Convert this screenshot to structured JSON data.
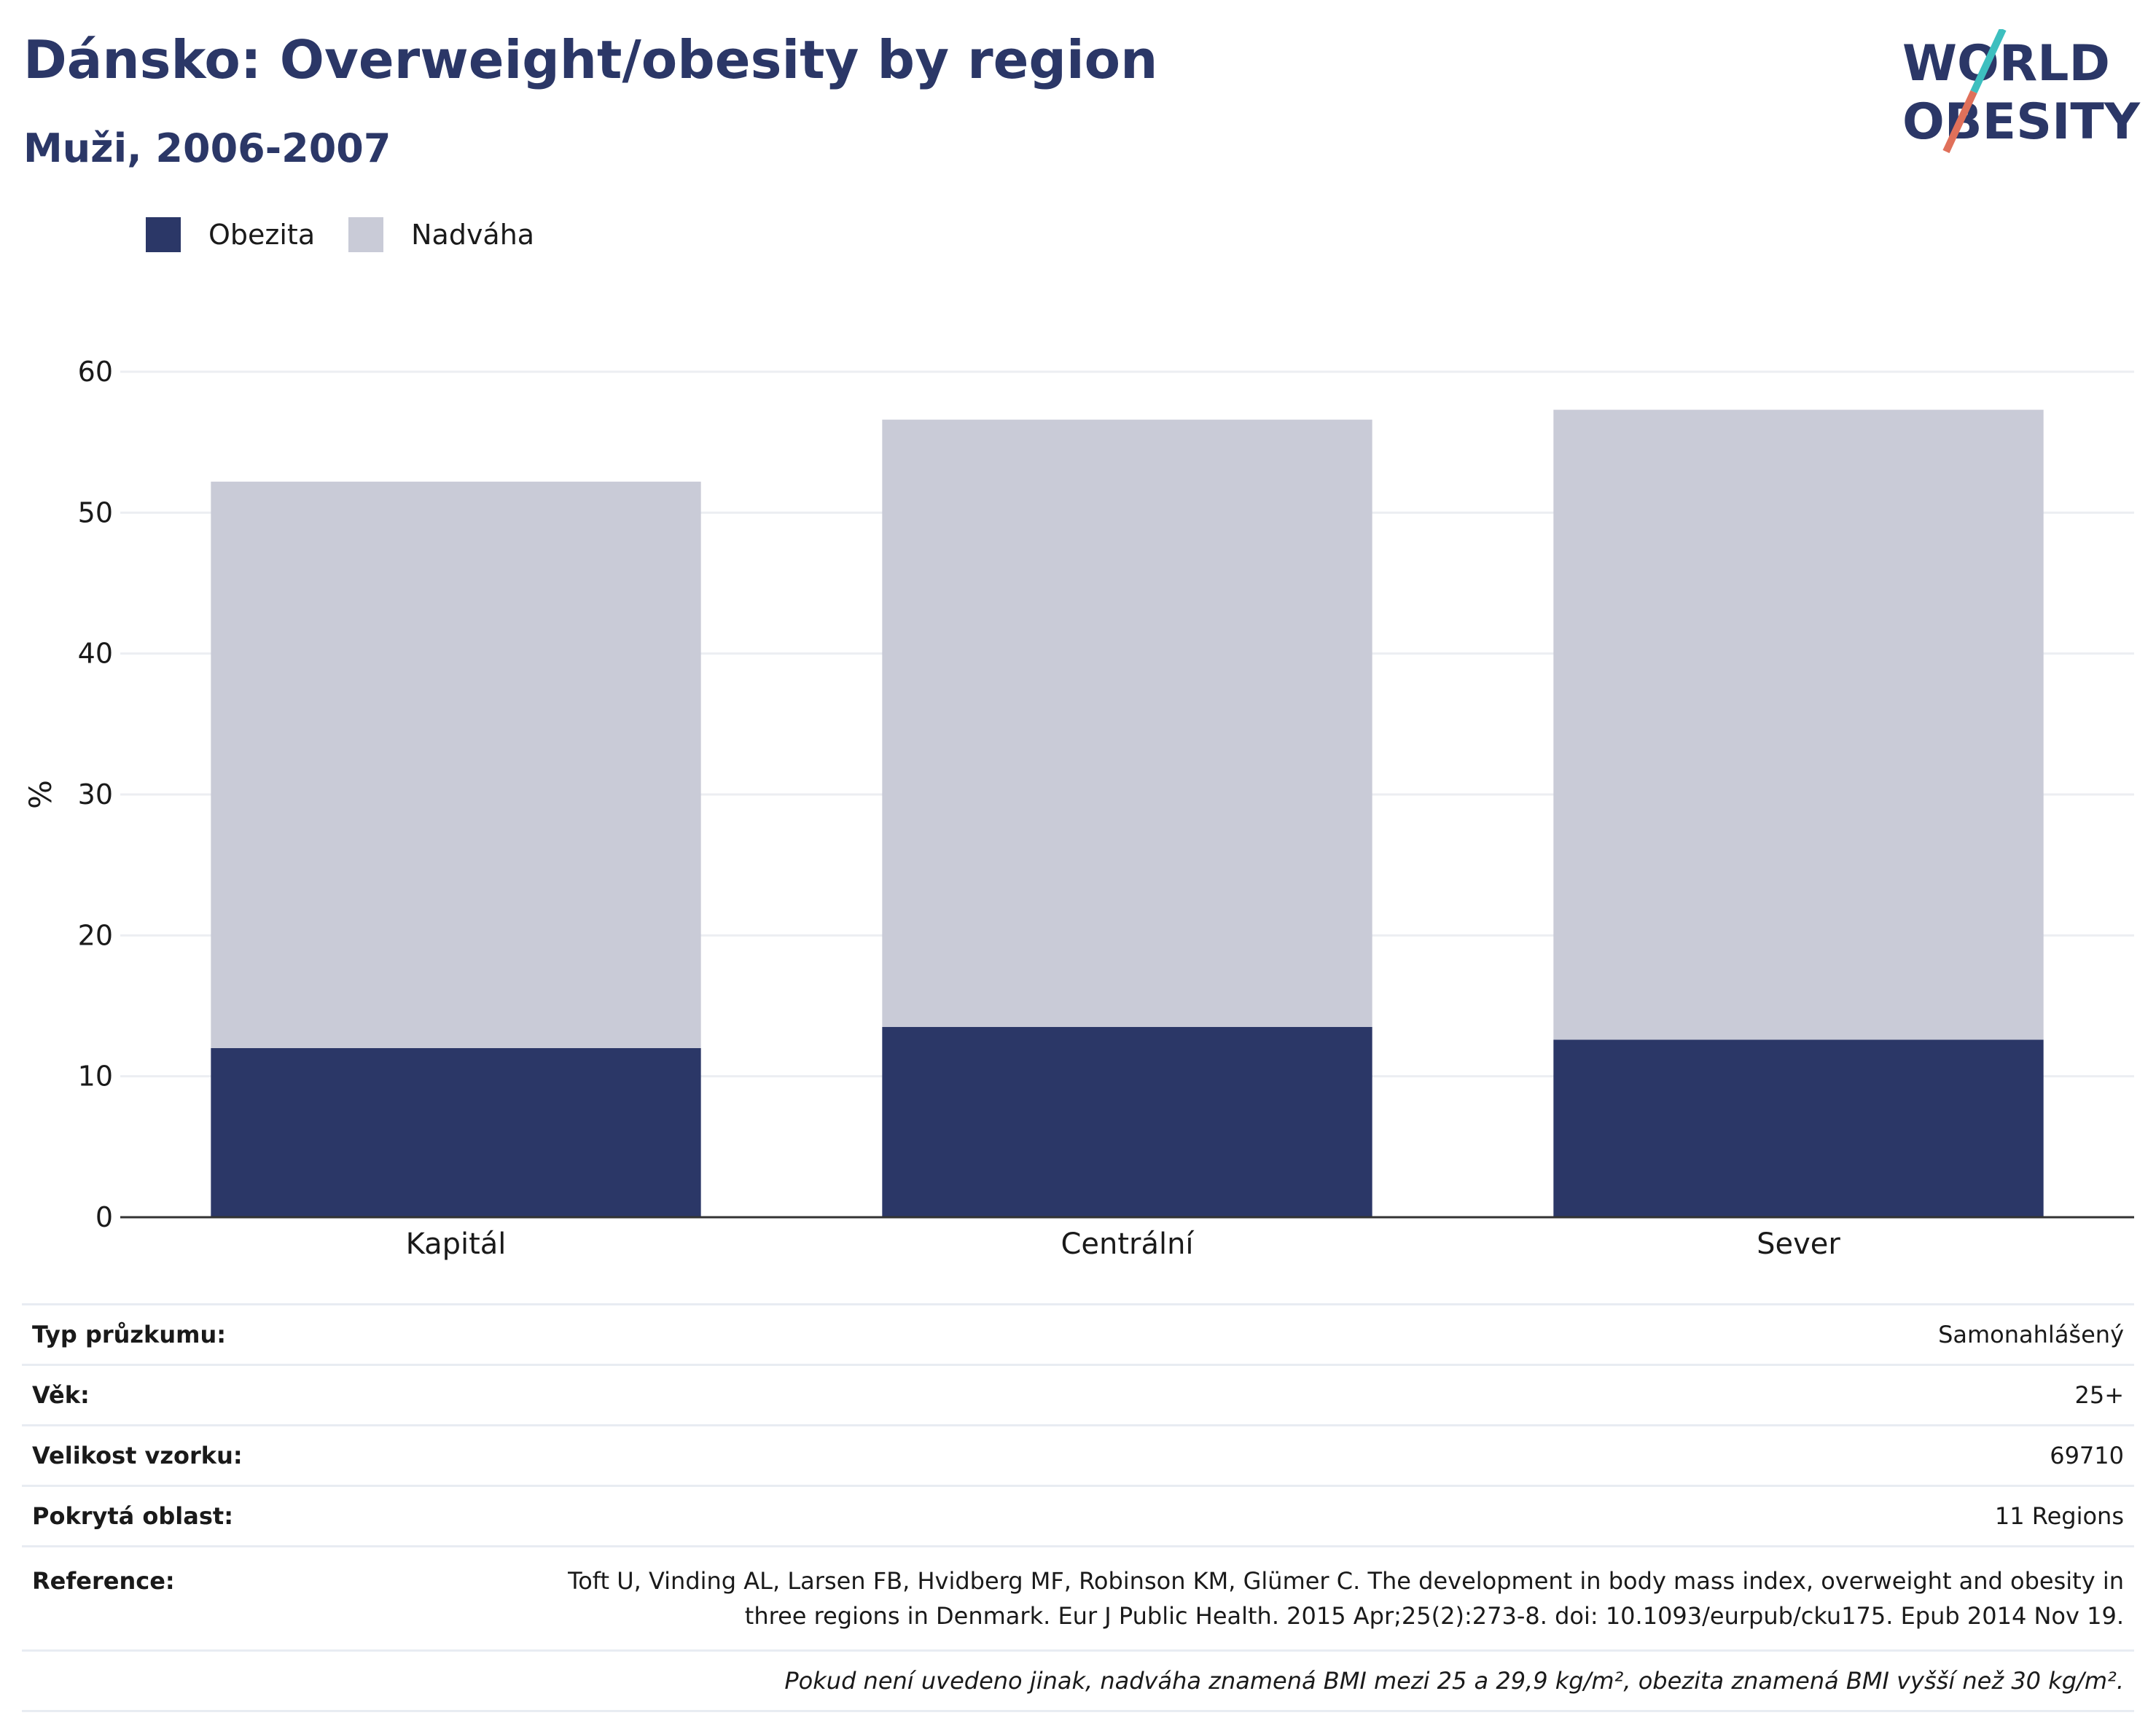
{
  "header": {
    "title": "Dánsko: Overweight/obesity by region",
    "subtitle": "Muži, 2006-2007"
  },
  "logo": {
    "line1": "WORLD",
    "line2": "OBESITY",
    "accent_teal": "#3dbfbf",
    "accent_coral": "#e0705a"
  },
  "legend": [
    {
      "label": "Obezita",
      "color": "#2b3767"
    },
    {
      "label": "Nadváha",
      "color": "#c9cbd7"
    }
  ],
  "chart_data": {
    "type": "bar",
    "stacked": true,
    "categories": [
      "Kapitál",
      "Centrální",
      "Sever"
    ],
    "series": [
      {
        "name": "Obezita",
        "color": "#2b3767",
        "values": [
          12.0,
          13.5,
          12.6
        ]
      },
      {
        "name": "Nadváha",
        "color": "#c9cbd7",
        "values": [
          40.2,
          43.1,
          44.7
        ]
      }
    ],
    "ylabel": "%",
    "ylim": [
      0,
      60
    ],
    "yticks": [
      0,
      10,
      20,
      30,
      40,
      50,
      60
    ],
    "grid": true
  },
  "meta": {
    "rows": [
      {
        "key": "Typ průzkumu:",
        "value": "Samonahlášený"
      },
      {
        "key": "Věk:",
        "value": "25+"
      },
      {
        "key": "Velikost vzorku:",
        "value": "69710"
      },
      {
        "key": "Pokrytá oblast:",
        "value": "11 Regions"
      }
    ],
    "reference": {
      "key": "Reference:",
      "line1": "Toft U, Vinding AL, Larsen FB, Hvidberg MF, Robinson KM, Glümer C. The development in body mass index, overweight and obesity in",
      "line2": "three regions in Denmark. Eur J Public Health. 2015 Apr;25(2):273-8. doi: 10.1093/eurpub/cku175. Epub 2014 Nov 19."
    },
    "note": "Pokud není uvedeno jinak, nadváha znamená BMI mezi 25 a 29,9 kg/m², obezita znamená BMI vyšší než 30 kg/m²."
  }
}
